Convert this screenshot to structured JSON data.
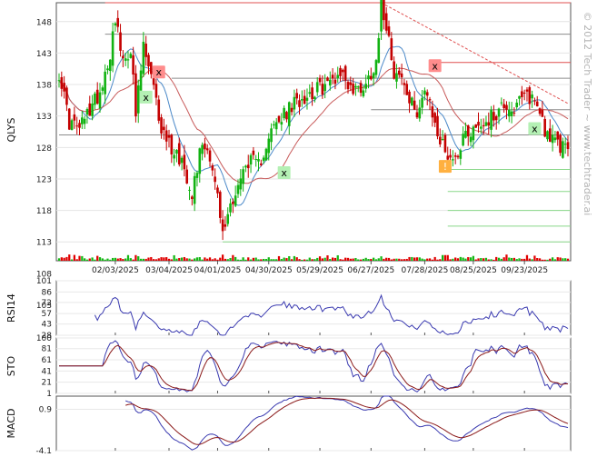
{
  "watermark": "© 2012 Tech Trader ~ www.techtrader.ai",
  "chart_data": {
    "type": "line",
    "title": "",
    "colors": {
      "up": "#12b212",
      "down": "#c40000",
      "vol_up": "#14b814",
      "vol_down": "#e00000",
      "ma_fast": "#4a88c8",
      "ma_slow": "#c85a5a",
      "osc_line": "#3a3ab0",
      "osc_signal": "#8b1a1a",
      "support": "#8ad88a",
      "resistance": "#e05050",
      "level_grey": "#8c8c8c"
    },
    "x_labels": [
      "02/03/2025",
      "03/04/2025",
      "04/01/2025",
      "04/30/2025",
      "05/29/2025",
      "06/27/2025",
      "07/28/2025",
      "08/25/2025",
      "09/23/2025"
    ],
    "x_label_index": [
      22,
      43,
      62,
      82,
      102,
      122,
      143,
      162,
      182
    ],
    "n_bars": 200,
    "price_panel": {
      "ylabel": "QLYS",
      "ylim": [
        110,
        151
      ],
      "yticks": [
        148,
        143,
        138,
        133,
        128,
        123,
        118,
        113
      ],
      "volume_ticks": [
        108,
        103
      ],
      "anchors": [
        [
          0,
          140
        ],
        [
          4,
          132
        ],
        [
          8,
          131
        ],
        [
          12,
          134
        ],
        [
          16,
          137
        ],
        [
          20,
          143
        ],
        [
          22,
          149
        ],
        [
          25,
          141
        ],
        [
          28,
          144
        ],
        [
          30,
          133
        ],
        [
          33,
          144
        ],
        [
          36,
          139
        ],
        [
          40,
          131
        ],
        [
          44,
          128
        ],
        [
          48,
          126
        ],
        [
          52,
          121
        ],
        [
          56,
          129
        ],
        [
          59,
          127
        ],
        [
          62,
          120
        ],
        [
          64,
          114
        ],
        [
          67,
          119
        ],
        [
          70,
          122
        ],
        [
          74,
          126
        ],
        [
          78,
          125
        ],
        [
          82,
          130
        ],
        [
          86,
          132
        ],
        [
          90,
          134
        ],
        [
          95,
          136
        ],
        [
          100,
          137
        ],
        [
          105,
          138
        ],
        [
          110,
          140
        ],
        [
          115,
          137
        ],
        [
          120,
          138
        ],
        [
          124,
          142
        ],
        [
          126,
          151
        ],
        [
          129,
          146
        ],
        [
          131,
          140
        ],
        [
          134,
          139
        ],
        [
          137,
          135
        ],
        [
          140,
          134
        ],
        [
          143,
          137
        ],
        [
          146,
          133
        ],
        [
          149,
          129
        ],
        [
          152,
          127
        ],
        [
          155,
          126
        ],
        [
          158,
          130
        ],
        [
          162,
          131
        ],
        [
          166,
          132
        ],
        [
          170,
          133
        ],
        [
          174,
          135
        ],
        [
          178,
          134
        ],
        [
          182,
          136
        ],
        [
          185,
          136
        ],
        [
          188,
          134
        ],
        [
          190,
          131
        ],
        [
          193,
          129
        ],
        [
          196,
          128
        ],
        [
          199,
          129
        ]
      ],
      "signals": [
        {
          "label": "x",
          "kind": "sell",
          "bar": 39,
          "price": 140
        },
        {
          "label": "x",
          "kind": "buy",
          "bar": 34,
          "price": 136
        },
        {
          "label": "x",
          "kind": "buy",
          "bar": 88,
          "price": 124
        },
        {
          "label": "x",
          "kind": "sell",
          "bar": 147,
          "price": 141
        },
        {
          "label": "!",
          "kind": "alert",
          "bar": 151,
          "price": 125
        },
        {
          "label": "x",
          "kind": "buy",
          "bar": 186,
          "price": 131
        }
      ],
      "levels": [
        {
          "price": 151,
          "from": 18,
          "kind": "resistance"
        },
        {
          "price": 146,
          "from": 18,
          "kind": "grey"
        },
        {
          "price": 141.5,
          "from": 148,
          "kind": "resistance"
        },
        {
          "price": 139,
          "from": 44,
          "kind": "grey"
        },
        {
          "price": 134,
          "from": 122,
          "kind": "grey"
        },
        {
          "price": 130,
          "from": 0,
          "kind": "grey"
        },
        {
          "price": 124.5,
          "from": 152,
          "kind": "support"
        },
        {
          "price": 121,
          "from": 152,
          "kind": "support"
        },
        {
          "price": 118,
          "from": 152,
          "kind": "support"
        },
        {
          "price": 115.5,
          "from": 152,
          "kind": "support"
        },
        {
          "price": 113,
          "from": 64,
          "kind": "support"
        }
      ],
      "trendline": {
        "from": [
          126,
          151
        ],
        "to": [
          199,
          135
        ]
      }
    },
    "rsi_panel": {
      "ylabel": "RSI14",
      "ylim": [
        28,
        101
      ],
      "yticks": [
        101,
        86,
        72,
        57,
        43,
        28
      ]
    },
    "sto_panel": {
      "ylabel": "STO",
      "ylim": [
        1,
        100
      ],
      "yticks": [
        100,
        81,
        61,
        41,
        21,
        1
      ]
    },
    "macd_panel": {
      "ylabel": "MACD",
      "ylim": [
        -4.1,
        2.5
      ],
      "yticks": [
        0.9,
        -4.1
      ]
    }
  }
}
